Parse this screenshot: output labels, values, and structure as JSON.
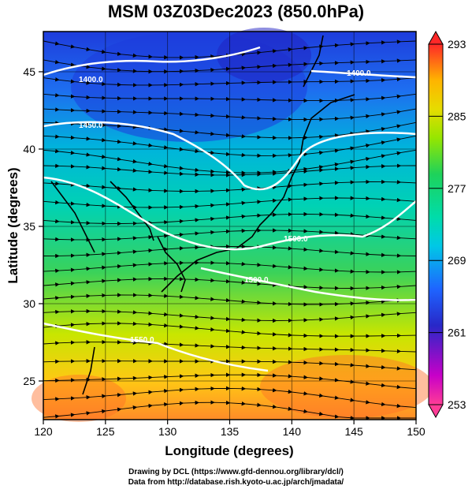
{
  "title": "MSM 03Z03Dec2023 (850.0hPa)",
  "axes": {
    "xlabel": "Longitude (degrees)",
    "ylabel": "Latitude  (degrees)",
    "xticks": [
      "120",
      "125",
      "130",
      "135",
      "140",
      "145",
      "150"
    ],
    "yticks": [
      "25",
      "30",
      "35",
      "40",
      "45"
    ],
    "xlim": [
      120,
      150
    ],
    "ylim": [
      22.5,
      47.6
    ]
  },
  "colorbar": {
    "labels": [
      "293",
      "285",
      "277",
      "269",
      "261",
      "253"
    ],
    "range": [
      253,
      293
    ],
    "colors": [
      "#ff3c78",
      "#c800c8",
      "#2828c8",
      "#1e64ff",
      "#00c8e6",
      "#00dcaa",
      "#1ed25a",
      "#96e600",
      "#e6dc00",
      "#ffb400",
      "#ff6e28",
      "#ff2828"
    ]
  },
  "contours": {
    "color": "#ffffff",
    "labels": [
      "1400.0",
      "1400.0",
      "1450.0",
      "1500.0",
      "1500.0",
      "1550.0"
    ]
  },
  "legend_markers": {
    "streamline_color": "#000000",
    "coastline_color": "#000000",
    "grid_color": "#000000"
  },
  "credits": {
    "line1": "Drawing by DCL (https://www.gfd-dennou.org/library/dcl/)",
    "line2": "Data from http://database.rish.kyoto-u.ac.jp/arch/jmadata/"
  }
}
